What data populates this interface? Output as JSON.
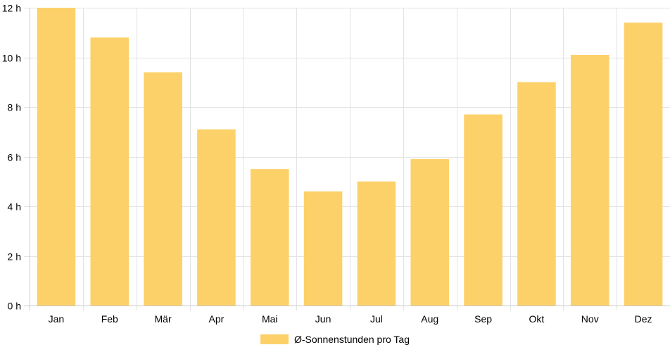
{
  "chart_data": {
    "type": "bar",
    "categories": [
      "Jan",
      "Feb",
      "Mär",
      "Apr",
      "Mai",
      "Jun",
      "Jul",
      "Aug",
      "Sep",
      "Okt",
      "Nov",
      "Dez"
    ],
    "series": [
      {
        "name": "Ø-Sonnenstunden pro Tag",
        "values": [
          12.0,
          10.8,
          9.4,
          7.1,
          5.5,
          4.6,
          5.0,
          5.9,
          7.7,
          9.0,
          10.1,
          11.4
        ],
        "color": "#fdd16a"
      }
    ],
    "y_ticks": [
      "0 h",
      "2 h",
      "4 h",
      "6 h",
      "8 h",
      "10 h",
      "12 h"
    ],
    "ylim": [
      0,
      12
    ],
    "grid": true,
    "legend_position": "bottom"
  }
}
